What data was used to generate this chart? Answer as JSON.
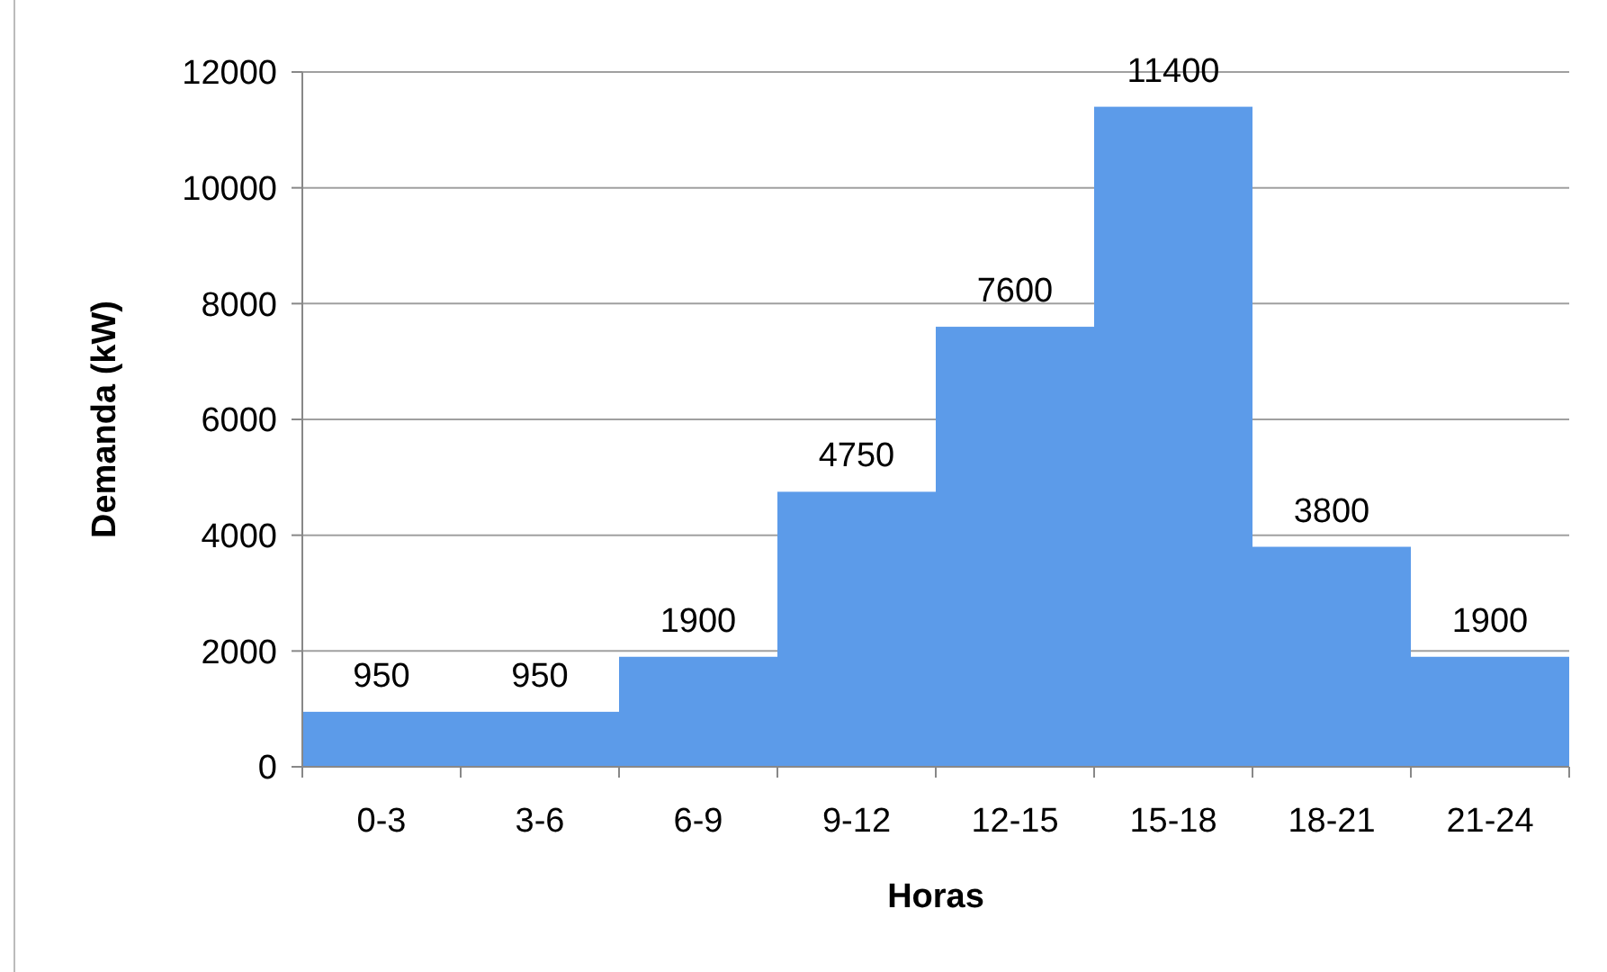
{
  "chart_data": {
    "type": "bar",
    "xlabel": "Horas",
    "ylabel": "Demanda (kW)",
    "categories": [
      "0-3",
      "3-6",
      "6-9",
      "9-12",
      "12-15",
      "15-18",
      "18-21",
      "21-24"
    ],
    "values": [
      950,
      950,
      1900,
      4750,
      7600,
      11400,
      3800,
      1900
    ],
    "color": "#5c9be9",
    "ylim": [
      0,
      12000
    ],
    "yticks": [
      0,
      2000,
      4000,
      6000,
      8000,
      10000,
      12000
    ],
    "grid": "y",
    "data_labels": true
  }
}
